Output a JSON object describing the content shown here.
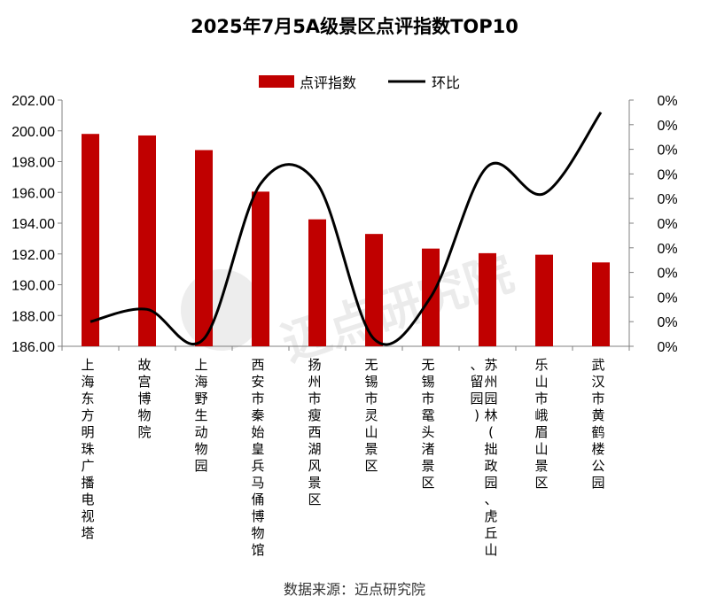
{
  "title": "2025年7月5A级景区点评指数TOP10",
  "source": "数据来源：迈点研究院",
  "watermark": "迈点研究院",
  "colors": {
    "bar": "#c00000",
    "line": "#000000",
    "axis": "#808080"
  },
  "chart_data": {
    "type": "bar",
    "categories": [
      "上海东方明珠广播电视塔",
      "故宫博物院",
      "上海野生动物园",
      "西安市秦始皇兵马俑博物馆",
      "扬州市瘦西湖风景区",
      "无锡市灵山景区",
      "无锡市鼋头渚景区",
      "苏州园林(拙政园、虎丘山、留园)",
      "乐山市峨眉山景区",
      "武汉市黄鹤楼公园"
    ],
    "series": [
      {
        "name": "点评指数",
        "type": "bar",
        "axis": "left",
        "values": [
          199.8,
          199.7,
          198.75,
          196.05,
          194.25,
          193.3,
          192.35,
          192.05,
          191.95,
          191.45
        ]
      },
      {
        "name": "环比",
        "type": "line",
        "axis": "right",
        "values": [
          1.0,
          1.5,
          0.3,
          6.6,
          6.6,
          0.3,
          2.0,
          7.3,
          6.2,
          9.5
        ]
      }
    ],
    "ylim_left": [
      186,
      202
    ],
    "yticks_left": [
      "202.00",
      "200.00",
      "198.00",
      "196.00",
      "194.00",
      "192.00",
      "190.00",
      "188.00",
      "186.00"
    ],
    "ylim_right": [
      0,
      10
    ],
    "yticks_right": [
      "0%",
      "0%",
      "0%",
      "0%",
      "0%",
      "0%",
      "0%",
      "0%",
      "0%",
      "0%",
      "0%"
    ],
    "legend_position": "top-center",
    "grid": false
  }
}
